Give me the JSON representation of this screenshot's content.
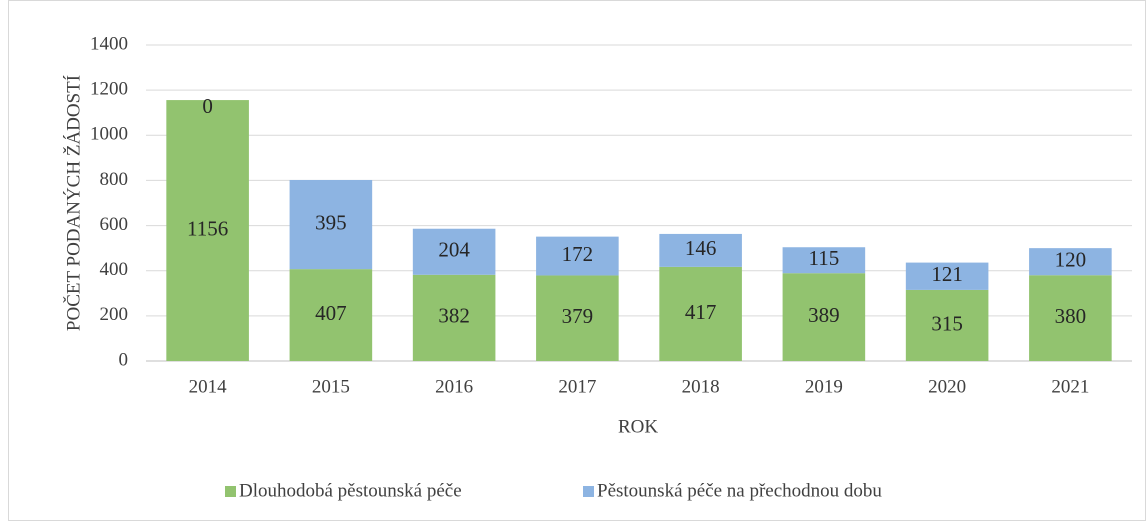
{
  "chart_data": {
    "type": "stacked_bar",
    "x_label": "ROK",
    "y_label": "POČET PODANÝCH ŽÁDOSTÍ",
    "categories": [
      "2014",
      "2015",
      "2016",
      "2017",
      "2018",
      "2019",
      "2020",
      "2021"
    ],
    "series": [
      {
        "name": "Dlouhodobá pěstounská péče",
        "color": "#92c36f",
        "values": [
          1156,
          407,
          382,
          379,
          417,
          389,
          315,
          380
        ]
      },
      {
        "name": "Pěstounská péče na přechodnou dobu",
        "color": "#8db4e2",
        "values": [
          0,
          395,
          204,
          172,
          146,
          115,
          121,
          120
        ]
      }
    ],
    "ylim": [
      0,
      1400
    ],
    "yticks": [
      0,
      200,
      400,
      600,
      800,
      1000,
      1200,
      1400
    ],
    "grid": true,
    "legend": "bottom"
  }
}
